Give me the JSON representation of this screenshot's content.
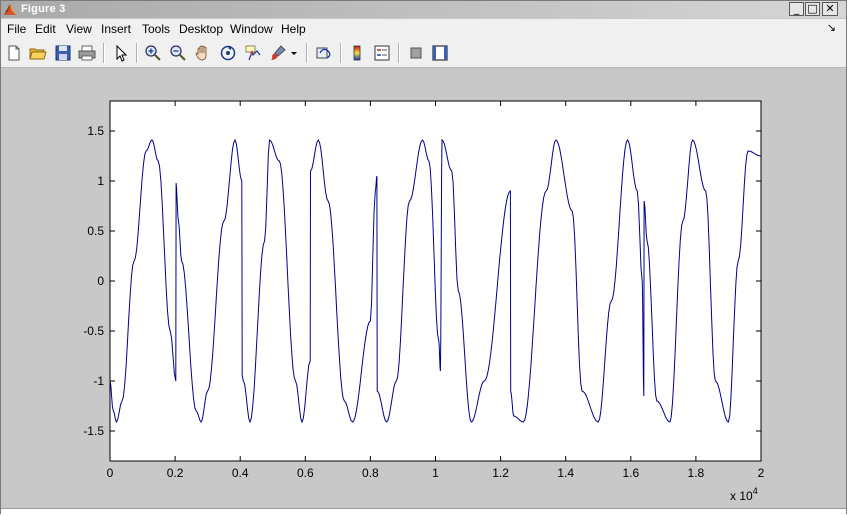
{
  "window": {
    "title": "Figure 3",
    "minimize_glyph": "_",
    "maximize_glyph": "□",
    "close_glyph": "✕"
  },
  "menubar": {
    "items": [
      "File",
      "Edit",
      "View",
      "Insert",
      "Tools",
      "Desktop",
      "Window",
      "Help"
    ],
    "dock_glyph": "↘"
  },
  "toolbar": {
    "buttons": [
      "new-figure-icon",
      "open-file-icon",
      "save-icon",
      "print-icon",
      "edit-plot-icon",
      "zoom-in-icon",
      "zoom-out-icon",
      "pan-icon",
      "rotate-3d-icon",
      "data-cursor-icon",
      "brush-icon",
      "brush-dropdown-icon",
      "link-plot-icon",
      "colorbar-icon",
      "legend-icon",
      "hide-plot-tools-icon",
      "show-plot-tools-icon"
    ]
  },
  "chart_data": {
    "type": "line",
    "title": "",
    "xlabel": "",
    "ylabel": "",
    "xlim": [
      0,
      20000
    ],
    "ylim": [
      -1.8,
      1.8
    ],
    "x_ticks": [
      0,
      2000,
      4000,
      6000,
      8000,
      10000,
      12000,
      14000,
      16000,
      18000,
      20000
    ],
    "x_tick_labels": [
      "0",
      "0.2",
      "0.4",
      "0.6",
      "0.8",
      "1",
      "1.2",
      "1.4",
      "1.6",
      "1.8",
      "2"
    ],
    "x_exponent_label": "x 10",
    "x_exponent_power": "4",
    "y_ticks": [
      -1.5,
      -1,
      -0.5,
      0,
      0.5,
      1,
      1.5
    ],
    "y_tick_labels": [
      "-1.5",
      "-1",
      "-0.5",
      "0",
      "0.5",
      "1",
      "1.5"
    ],
    "grid": false,
    "line_color": "#00008b",
    "series": [
      {
        "amplitude": 1.41,
        "period": 2950,
        "points_x": [
          0,
          100,
          200,
          370,
          740,
          1110,
          1290,
          1480,
          1850,
          2020,
          2030,
          2100,
          2200,
          2650,
          2800,
          3000,
          3500,
          3840,
          4050,
          4060,
          4100,
          4300,
          4750,
          4900,
          5200,
          5700,
          5900,
          6150,
          6160,
          6400,
          6700,
          7200,
          7450,
          8000,
          8150,
          8200,
          8210,
          8500,
          8800,
          9200,
          9600,
          9800,
          10100,
          10150,
          10200,
          10500,
          10700,
          11100,
          11500,
          12300,
          12310,
          12400,
          12700,
          13400,
          13700,
          14200,
          14500,
          15000,
          15400,
          15900,
          16200,
          16350,
          16400,
          16410,
          16500,
          16800,
          17200,
          17600,
          17900,
          18300,
          18600,
          19000,
          19300,
          19600,
          20000
        ],
        "points_y": [
          -1.0,
          -1.3,
          -1.41,
          -1.2,
          0.2,
          1.3,
          1.41,
          1.2,
          -0.5,
          -1.0,
          0.98,
          0.6,
          0.2,
          -1.3,
          -1.41,
          -1.1,
          0.6,
          1.41,
          1.0,
          -0.95,
          -1.0,
          -1.41,
          0.4,
          1.41,
          1.2,
          -1.0,
          -1.41,
          -0.8,
          1.1,
          1.41,
          0.8,
          -1.2,
          -1.41,
          -0.4,
          0.9,
          1.05,
          -1.1,
          -1.41,
          -1.0,
          0.8,
          1.41,
          1.2,
          -0.6,
          -0.9,
          1.41,
          1.1,
          -0.1,
          -1.41,
          -1.0,
          0.9,
          -1.1,
          -1.35,
          -1.41,
          0.9,
          1.41,
          0.7,
          -1.1,
          -1.41,
          -0.2,
          1.41,
          0.9,
          0.0,
          -1.15,
          0.8,
          0.4,
          -1.2,
          -1.41,
          0.6,
          1.41,
          0.9,
          -1.0,
          -1.41,
          0.2,
          1.3,
          1.25
        ]
      }
    ]
  }
}
